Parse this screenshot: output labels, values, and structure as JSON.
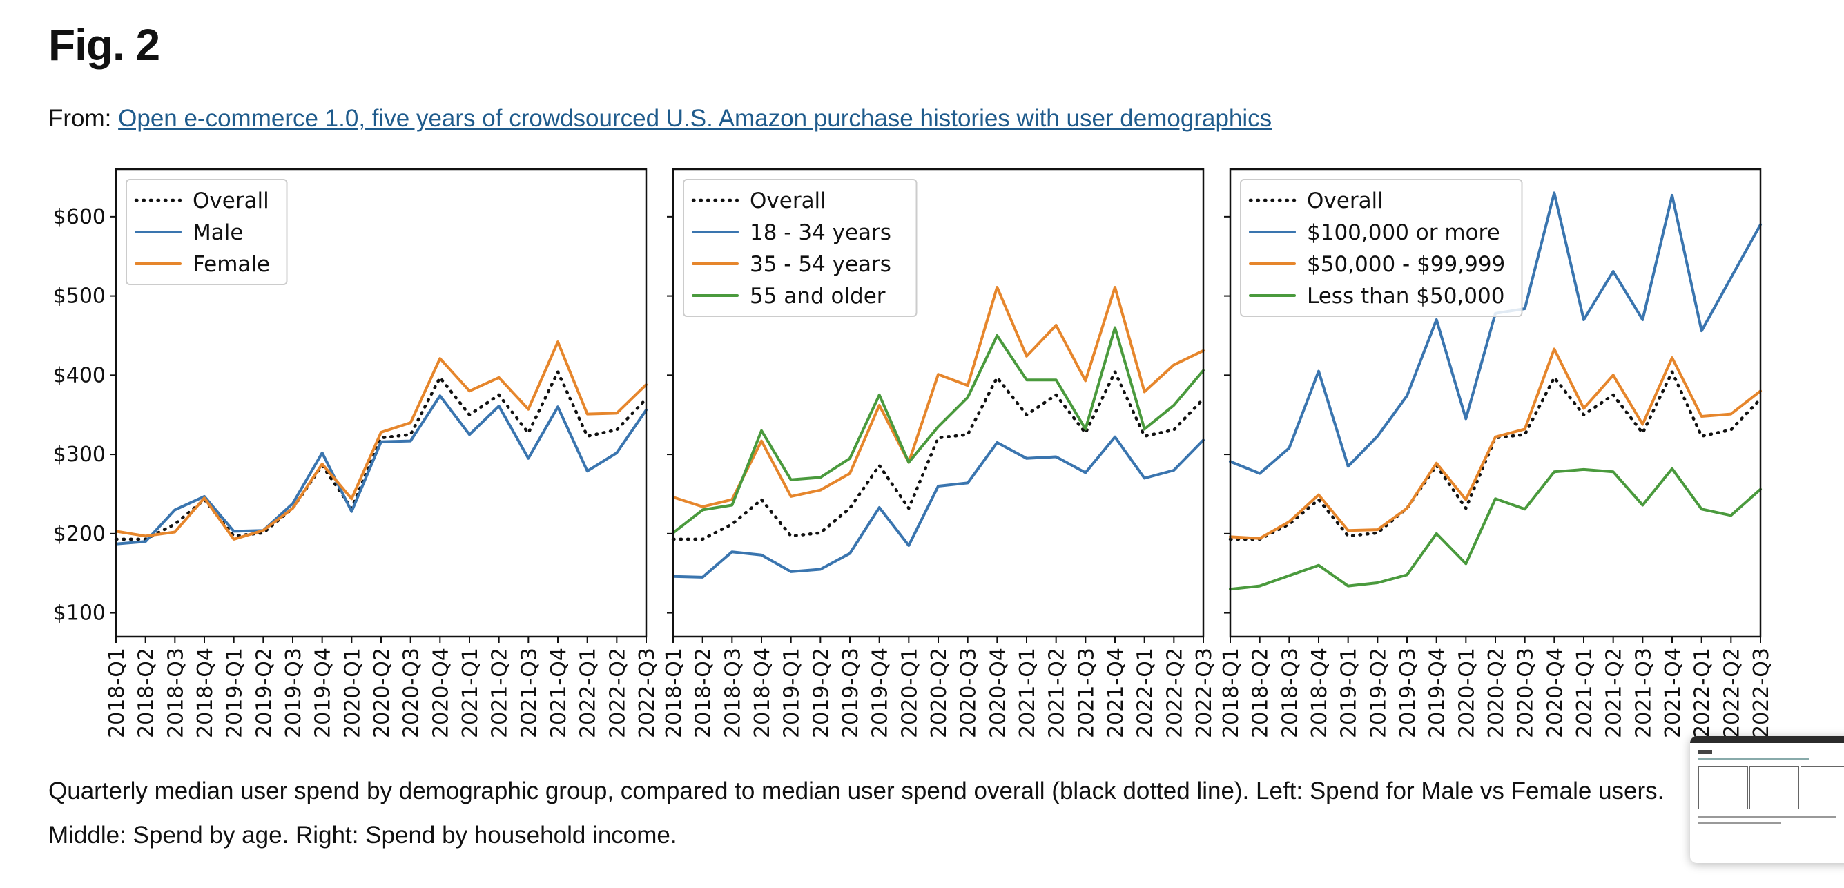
{
  "page": {
    "title": "Fig. 2",
    "from_label": "From:",
    "from_link": "Open e-commerce 1.0, five years of crowdsourced U.S. Amazon purchase histories with user demographics",
    "caption_line1": "Quarterly median user spend by demographic group, compared to median user spend overall (black dotted line). Left: Spend for Male vs Female users.",
    "caption_line2": "Middle: Spend by age. Right: Spend by household income."
  },
  "colors": {
    "overall": "#111111",
    "blue": "#3a75af",
    "orange": "#e6862c",
    "green": "#4a9a3d",
    "link": "#1f5b8c"
  },
  "chart_data": [
    {
      "type": "line",
      "title": "",
      "x": [
        "2018-Q1",
        "2018-Q2",
        "2018-Q3",
        "2018-Q4",
        "2019-Q1",
        "2019-Q2",
        "2019-Q3",
        "2019-Q4",
        "2020-Q1",
        "2020-Q2",
        "2020-Q3",
        "2020-Q4",
        "2021-Q1",
        "2021-Q2",
        "2021-Q3",
        "2021-Q4",
        "2022-Q1",
        "2022-Q2",
        "2022-Q3"
      ],
      "ylim": [
        70,
        660
      ],
      "yticks": [
        100,
        200,
        300,
        400,
        500,
        600
      ],
      "ytick_labels": [
        "$100",
        "$200",
        "$300",
        "$400",
        "$500",
        "$600"
      ],
      "legend_position": "upper left",
      "series": [
        {
          "name": "Overall",
          "style": "dotted",
          "color": "#111111",
          "values": [
            193,
            193,
            212,
            243,
            197,
            201,
            232,
            286,
            232,
            321,
            325,
            397,
            350,
            375,
            327,
            404,
            323,
            331,
            370
          ]
        },
        {
          "name": "Male",
          "style": "solid",
          "color": "#3a75af",
          "values": [
            187,
            190,
            230,
            247,
            203,
            204,
            238,
            302,
            228,
            316,
            317,
            374,
            325,
            361,
            295,
            360,
            279,
            302,
            356
          ]
        },
        {
          "name": "Female",
          "style": "solid",
          "color": "#e6862c",
          "values": [
            203,
            197,
            202,
            245,
            193,
            204,
            232,
            288,
            244,
            328,
            340,
            421,
            380,
            397,
            357,
            442,
            351,
            352,
            388
          ]
        }
      ]
    },
    {
      "type": "line",
      "title": "",
      "x": [
        "2018-Q1",
        "2018-Q2",
        "2018-Q3",
        "2018-Q4",
        "2019-Q1",
        "2019-Q2",
        "2019-Q3",
        "2019-Q4",
        "2020-Q1",
        "2020-Q2",
        "2020-Q3",
        "2020-Q4",
        "2021-Q1",
        "2021-Q2",
        "2021-Q3",
        "2021-Q4",
        "2022-Q1",
        "2022-Q2",
        "2022-Q3"
      ],
      "ylim": [
        70,
        660
      ],
      "yticks": [
        100,
        200,
        300,
        400,
        500,
        600
      ],
      "legend_position": "upper left",
      "series": [
        {
          "name": "Overall",
          "style": "dotted",
          "color": "#111111",
          "values": [
            193,
            193,
            212,
            243,
            197,
            201,
            232,
            286,
            232,
            321,
            325,
            397,
            350,
            375,
            327,
            404,
            323,
            331,
            370
          ]
        },
        {
          "name": "18 - 34 years",
          "style": "solid",
          "color": "#3a75af",
          "values": [
            146,
            145,
            177,
            173,
            152,
            155,
            175,
            233,
            185,
            260,
            264,
            315,
            295,
            297,
            277,
            322,
            270,
            280,
            318
          ]
        },
        {
          "name": "35 - 54 years",
          "style": "solid",
          "color": "#e6862c",
          "values": [
            246,
            234,
            243,
            317,
            247,
            255,
            276,
            362,
            290,
            401,
            387,
            511,
            424,
            463,
            393,
            511,
            379,
            413,
            431
          ]
        },
        {
          "name": "55 and older",
          "style": "solid",
          "color": "#4a9a3d",
          "values": [
            201,
            230,
            236,
            330,
            268,
            271,
            295,
            375,
            290,
            335,
            372,
            450,
            394,
            394,
            332,
            460,
            332,
            362,
            406
          ]
        }
      ]
    },
    {
      "type": "line",
      "title": "",
      "x": [
        "2018-Q1",
        "2018-Q2",
        "2018-Q3",
        "2018-Q4",
        "2019-Q1",
        "2019-Q2",
        "2019-Q3",
        "2019-Q4",
        "2020-Q1",
        "2020-Q2",
        "2020-Q3",
        "2020-Q4",
        "2021-Q1",
        "2021-Q2",
        "2021-Q3",
        "2021-Q4",
        "2022-Q1",
        "2022-Q2",
        "2022-Q3"
      ],
      "ylim": [
        70,
        660
      ],
      "yticks": [
        100,
        200,
        300,
        400,
        500,
        600
      ],
      "legend_position": "upper left",
      "series": [
        {
          "name": "Overall",
          "style": "dotted",
          "color": "#111111",
          "values": [
            193,
            193,
            212,
            243,
            197,
            201,
            232,
            286,
            232,
            321,
            325,
            397,
            350,
            375,
            327,
            404,
            323,
            331,
            370
          ]
        },
        {
          "name": "$100,000 or more",
          "style": "solid",
          "color": "#3a75af",
          "values": [
            291,
            276,
            308,
            405,
            285,
            323,
            374,
            470,
            345,
            478,
            484,
            630,
            470,
            531,
            470,
            627,
            456,
            523,
            590
          ]
        },
        {
          "name": "$50,000 - $99,999",
          "style": "solid",
          "color": "#e6862c",
          "values": [
            196,
            194,
            215,
            249,
            204,
            205,
            232,
            289,
            243,
            322,
            332,
            433,
            358,
            400,
            338,
            422,
            348,
            351,
            380
          ]
        },
        {
          "name": "Less than $50,000",
          "style": "solid",
          "color": "#4a9a3d",
          "values": [
            130,
            134,
            147,
            160,
            134,
            138,
            148,
            200,
            162,
            244,
            231,
            278,
            281,
            278,
            236,
            282,
            231,
            223,
            256
          ]
        }
      ]
    }
  ]
}
